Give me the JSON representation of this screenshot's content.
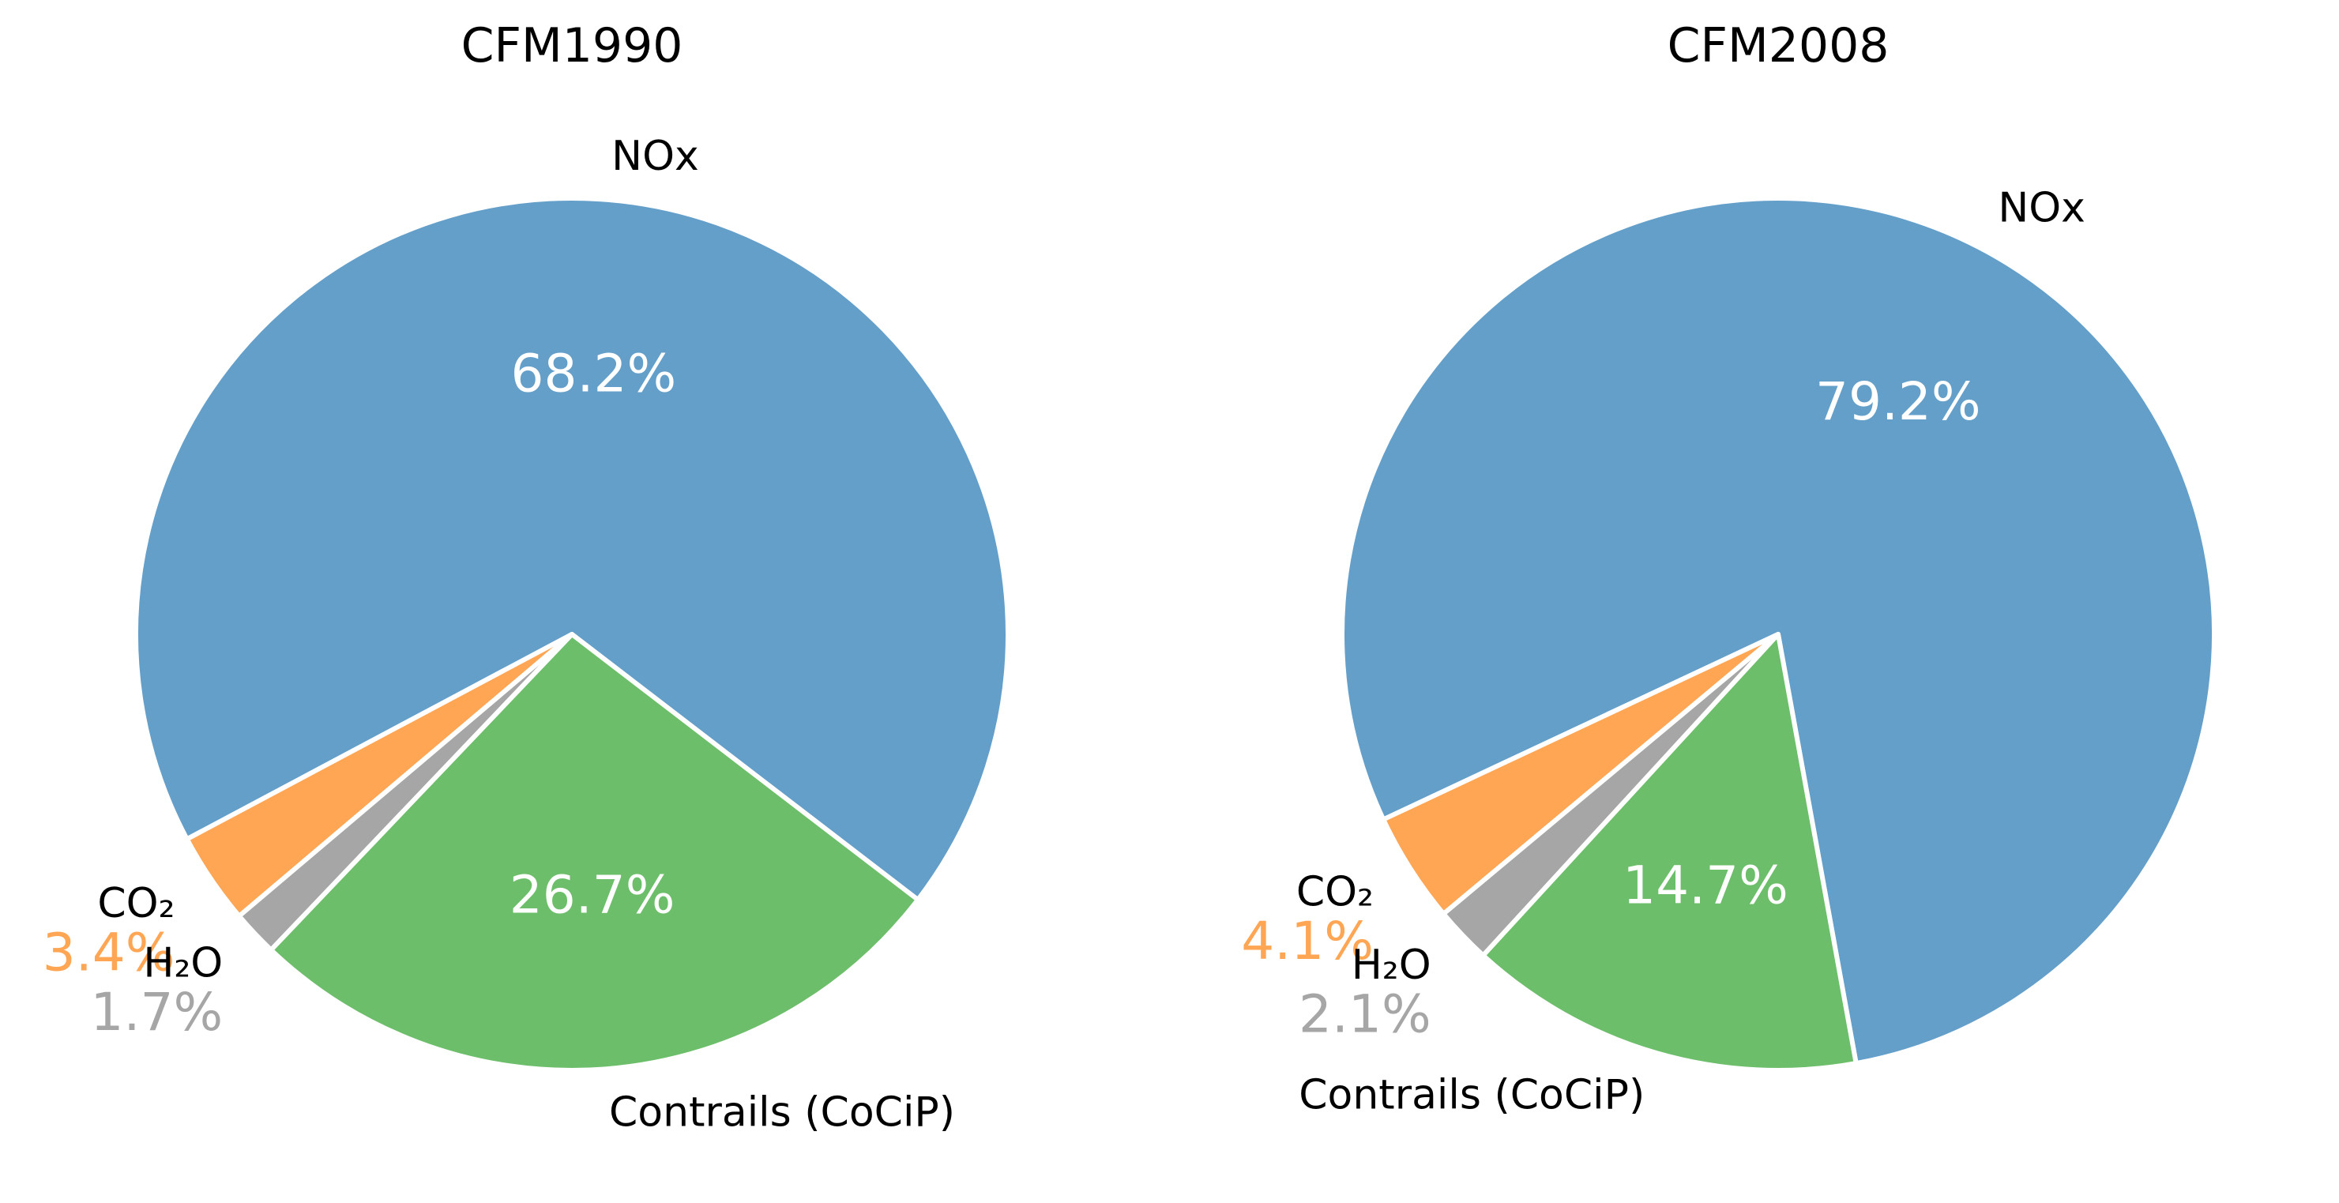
{
  "chart_data": [
    {
      "type": "pie",
      "title": "CFM1990",
      "slices": [
        {
          "label": "NOx",
          "value": 68.2,
          "pct_text": "68.2%",
          "color": "#649fca",
          "pct_color": "#ffffff"
        },
        {
          "label": "CO₂",
          "value": 3.4,
          "pct_text": "3.4%",
          "color": "#ffa655",
          "pct_color": "#ffa655"
        },
        {
          "label": "H₂O",
          "value": 1.7,
          "pct_text": "1.7%",
          "color": "#a6a6a6",
          "pct_color": "#a6a6a6"
        },
        {
          "label": "Contrails (CoCiP)",
          "value": 26.7,
          "pct_text": "26.7%",
          "color": "#6dbe6b",
          "pct_color": "#ffffff"
        }
      ]
    },
    {
      "type": "pie",
      "title": "CFM2008",
      "slices": [
        {
          "label": "NOx",
          "value": 79.2,
          "pct_text": "79.2%",
          "color": "#649fca",
          "pct_color": "#ffffff"
        },
        {
          "label": "CO₂",
          "value": 4.1,
          "pct_text": "4.1%",
          "color": "#ffa655",
          "pct_color": "#ffa655"
        },
        {
          "label": "H₂O",
          "value": 2.1,
          "pct_text": "2.1%",
          "color": "#a6a6a6",
          "pct_color": "#a6a6a6"
        },
        {
          "label": "Contrails (CoCiP)",
          "value": 14.7,
          "pct_text": "14.7%",
          "color": "#6dbe6b",
          "pct_color": "#ffffff"
        }
      ]
    }
  ]
}
